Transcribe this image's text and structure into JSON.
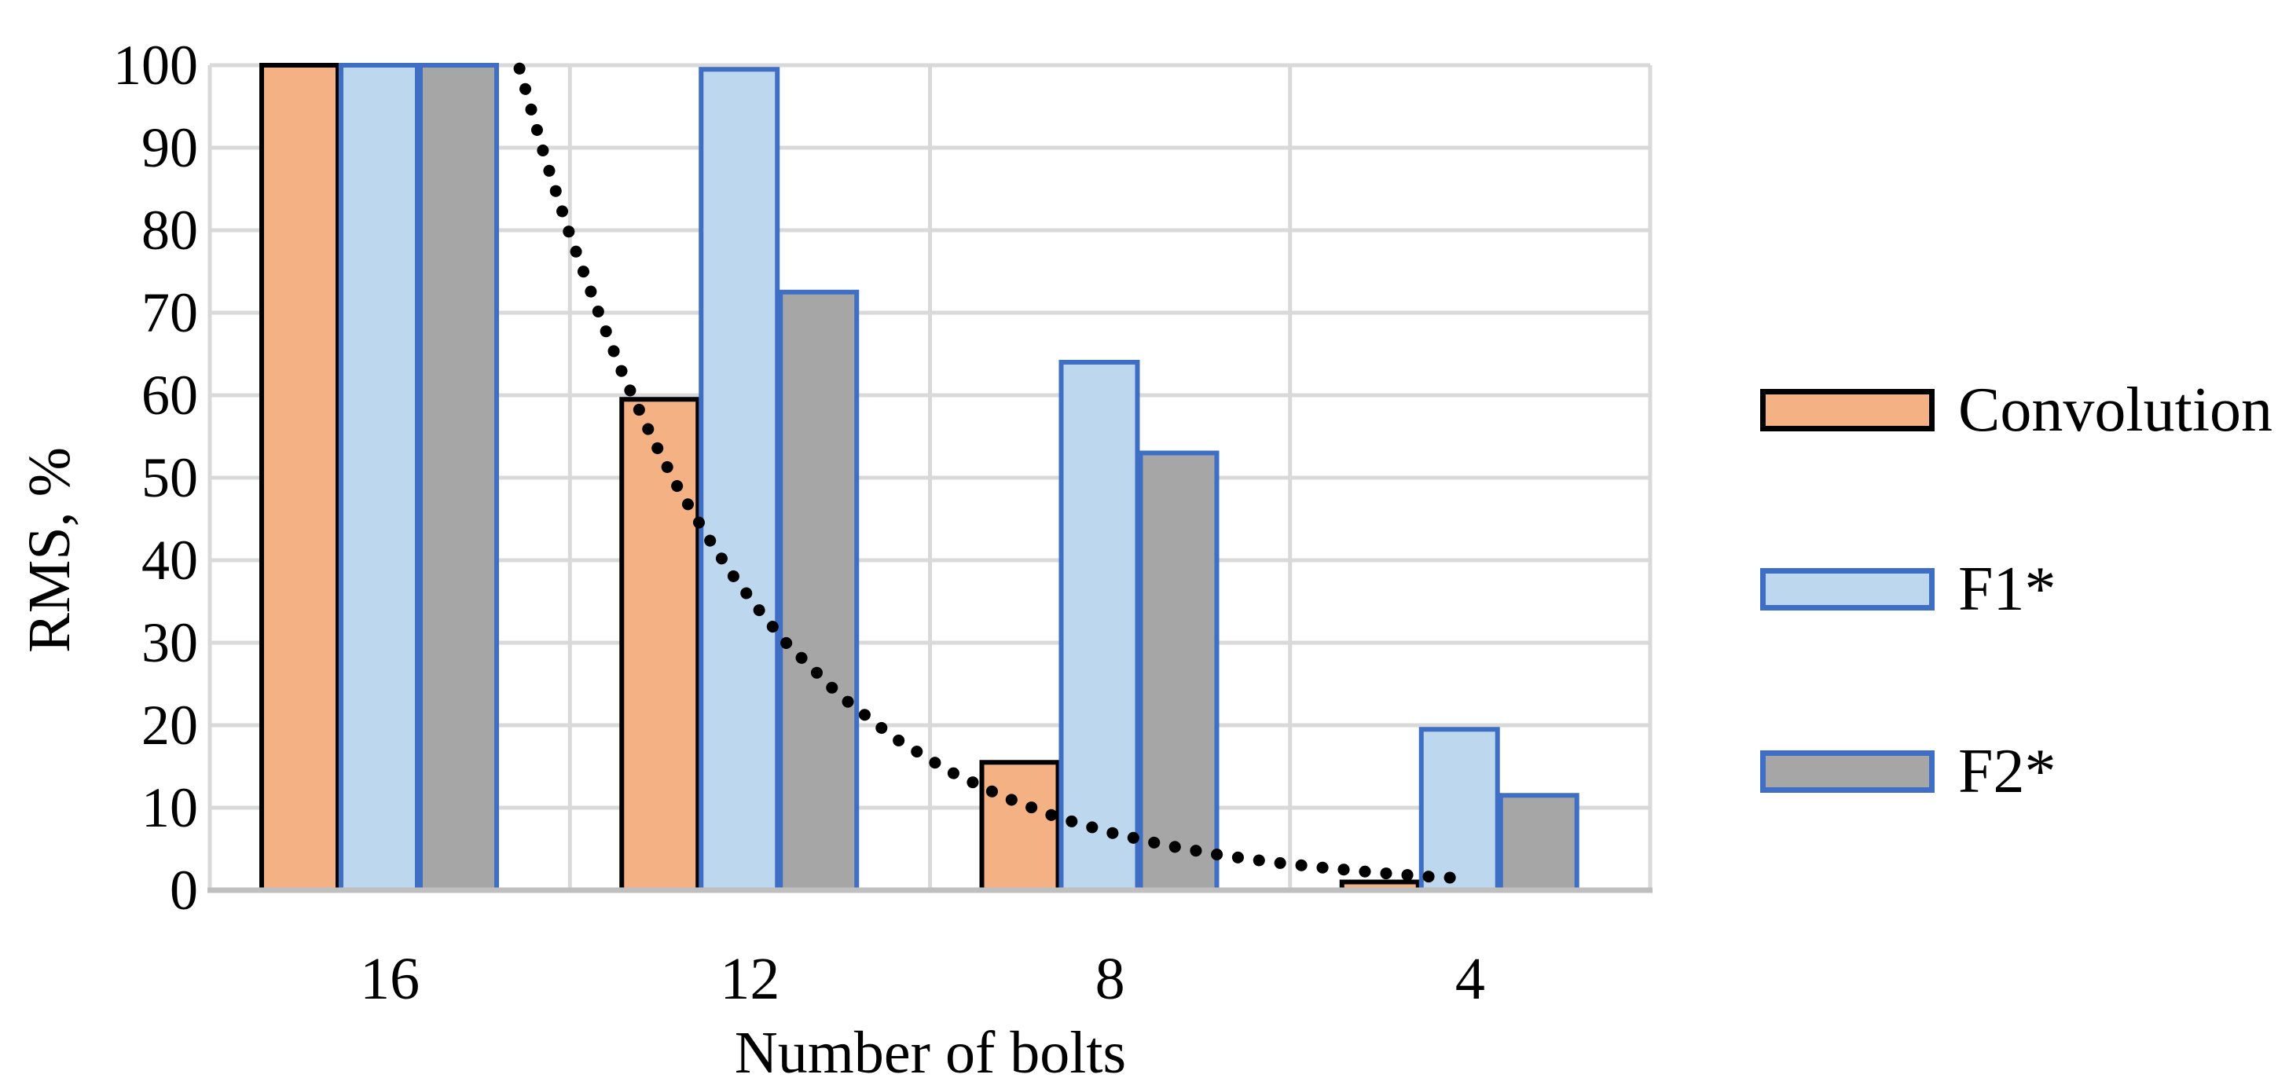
{
  "chart_data": {
    "type": "bar",
    "title": "",
    "xlabel": "Number of bolts",
    "ylabel": "RMS, %",
    "categories": [
      "16",
      "12",
      "8",
      "4"
    ],
    "ylim": [
      0,
      100
    ],
    "yticks": [
      100,
      90,
      80,
      70,
      60,
      50,
      40,
      30,
      20,
      10,
      0
    ],
    "grid": true,
    "legend_position": "right-outside",
    "series": [
      {
        "name": "Convolution",
        "values": [
          100,
          59.5,
          15.5,
          1
        ],
        "fill": "#F4B183",
        "border": "#000000"
      },
      {
        "name": "F1*",
        "values": [
          100,
          99.5,
          64,
          19.5
        ],
        "fill": "#BDD7EE",
        "border": "#3E6FC4"
      },
      {
        "name": "F2*",
        "values": [
          100,
          72.5,
          53,
          11.5
        ],
        "fill": "#A6A6A6",
        "border": "#3E6FC4"
      }
    ],
    "trendline": {
      "style": "dotted",
      "color": "#000000",
      "comment": "power/exponential decay trend, points are [category-axis position (1=16 bolts ... 4=4 bolts), RMS %]",
      "points": [
        [
          1.36,
          99.6
        ],
        [
          1.43,
          88.9
        ],
        [
          1.5,
          79.4
        ],
        [
          1.58,
          70.0
        ],
        [
          1.65,
          62.2
        ],
        [
          1.73,
          54.7
        ],
        [
          1.8,
          48.8
        ],
        [
          1.88,
          43.0
        ],
        [
          1.95,
          38.3
        ],
        [
          2.03,
          33.7
        ],
        [
          2.1,
          30.0
        ],
        [
          2.18,
          26.6
        ],
        [
          2.25,
          23.6
        ],
        [
          2.4,
          18.5
        ],
        [
          2.55,
          14.5
        ],
        [
          2.7,
          11.4
        ],
        [
          2.85,
          8.9
        ],
        [
          3.0,
          7.0
        ],
        [
          3.15,
          5.5
        ],
        [
          3.3,
          4.3
        ],
        [
          3.45,
          3.4
        ],
        [
          3.6,
          2.7
        ],
        [
          3.75,
          2.1
        ],
        [
          3.9,
          1.6
        ],
        [
          3.96,
          1.5
        ]
      ]
    }
  },
  "colors": {
    "background": "#FFFFFF",
    "gridline": "#D9D9D9",
    "axis_line": "#BFBFBF",
    "text": "#000000"
  }
}
